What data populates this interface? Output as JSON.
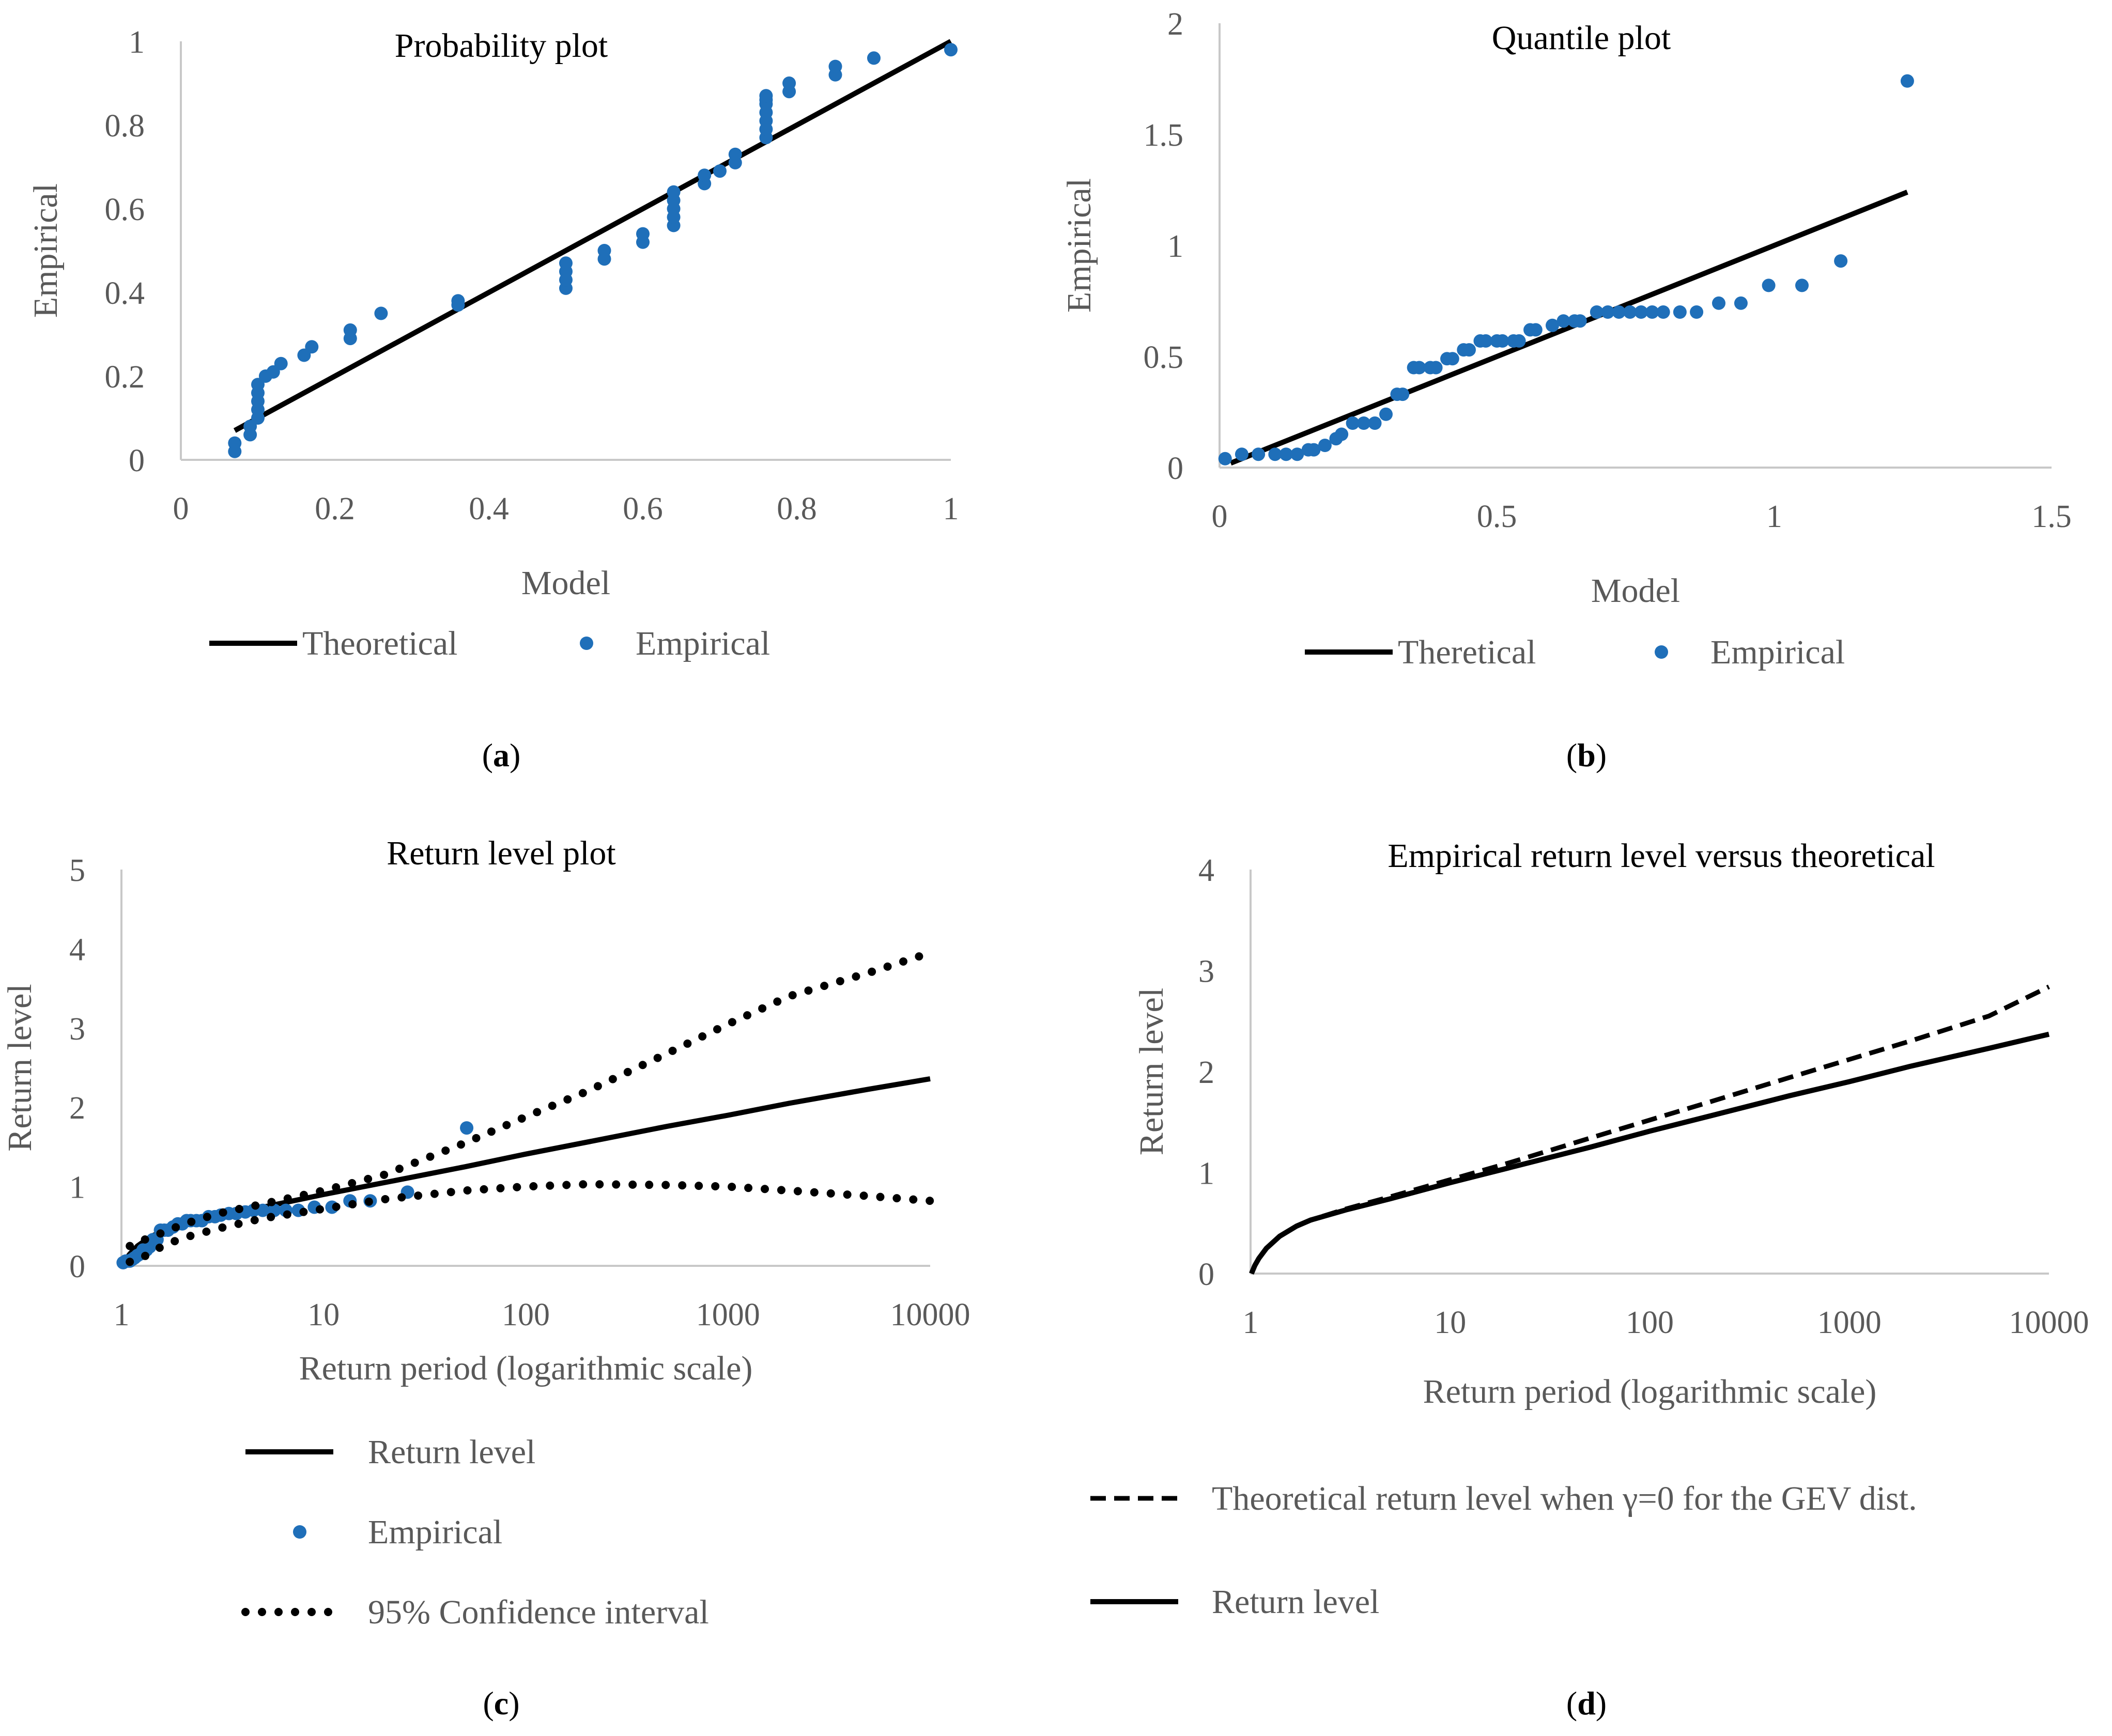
{
  "colors": {
    "empirical": "#1f6fb9",
    "line": "#000000",
    "axis": "#c8c8c8",
    "tick_text": "#595959"
  },
  "chart_data": [
    {
      "id": "a",
      "type": "scatter",
      "title": "Probability plot",
      "xlabel": "Model",
      "ylabel": "Empirical",
      "xlim": [
        0,
        1
      ],
      "ylim": [
        0,
        1
      ],
      "xticks": [
        0,
        0.2,
        0.4,
        0.6,
        0.8,
        1
      ],
      "xtick_labels": [
        "0",
        "0.2",
        "0.4",
        "0.6",
        "0.8",
        "1"
      ],
      "yticks": [
        0,
        0.2,
        0.4,
        0.6,
        0.8,
        1
      ],
      "ytick_labels": [
        "0",
        "0.2",
        "0.4",
        "0.6",
        "0.8",
        "1"
      ],
      "caption_letter": "a",
      "series": [
        {
          "name": "Theoretical",
          "kind": "line",
          "style": "solid",
          "x": [
            0.07,
            1.0
          ],
          "y": [
            0.07,
            1.0
          ]
        },
        {
          "name": "Empirical",
          "kind": "points",
          "x": [
            0.07,
            0.07,
            0.09,
            0.09,
            0.1,
            0.1,
            0.1,
            0.1,
            0.1,
            0.11,
            0.12,
            0.13,
            0.16,
            0.17,
            0.22,
            0.22,
            0.26,
            0.36,
            0.36,
            0.5,
            0.5,
            0.5,
            0.5,
            0.55,
            0.55,
            0.6,
            0.6,
            0.64,
            0.64,
            0.64,
            0.64,
            0.64,
            0.68,
            0.68,
            0.7,
            0.72,
            0.72,
            0.76,
            0.76,
            0.76,
            0.76,
            0.76,
            0.76,
            0.76,
            0.79,
            0.79,
            0.85,
            0.85,
            0.9,
            1.0
          ],
          "y": [
            0.02,
            0.04,
            0.06,
            0.08,
            0.1,
            0.12,
            0.14,
            0.16,
            0.18,
            0.2,
            0.21,
            0.23,
            0.25,
            0.27,
            0.29,
            0.31,
            0.35,
            0.37,
            0.38,
            0.41,
            0.43,
            0.45,
            0.47,
            0.48,
            0.5,
            0.52,
            0.54,
            0.56,
            0.58,
            0.6,
            0.62,
            0.64,
            0.66,
            0.68,
            0.69,
            0.71,
            0.73,
            0.77,
            0.79,
            0.81,
            0.83,
            0.85,
            0.86,
            0.87,
            0.88,
            0.9,
            0.92,
            0.94,
            0.96,
            0.98
          ]
        }
      ],
      "legend": [
        "Theoretical",
        "Empirical"
      ]
    },
    {
      "id": "b",
      "type": "scatter",
      "title": "Quantile plot",
      "xlabel": "Model",
      "ylabel": "Empirical",
      "xlim": [
        0,
        1.5
      ],
      "ylim": [
        0,
        2
      ],
      "xticks": [
        0,
        0.5,
        1,
        1.5
      ],
      "xtick_labels": [
        "0",
        "0.5",
        "1",
        "1.5"
      ],
      "yticks": [
        0,
        0.5,
        1,
        1.5,
        2
      ],
      "ytick_labels": [
        "0",
        "0.5",
        "1",
        "1.5",
        "2"
      ],
      "caption_letter": "b",
      "series": [
        {
          "name": "Theretical",
          "kind": "line",
          "style": "solid",
          "x": [
            0.02,
            1.24
          ],
          "y": [
            0.02,
            1.24
          ]
        },
        {
          "name": "Empirical",
          "kind": "points",
          "x": [
            0.01,
            0.04,
            0.07,
            0.1,
            0.12,
            0.14,
            0.16,
            0.17,
            0.19,
            0.21,
            0.22,
            0.24,
            0.26,
            0.28,
            0.3,
            0.32,
            0.33,
            0.35,
            0.36,
            0.38,
            0.39,
            0.41,
            0.42,
            0.44,
            0.45,
            0.47,
            0.48,
            0.5,
            0.51,
            0.53,
            0.54,
            0.56,
            0.57,
            0.6,
            0.62,
            0.64,
            0.65,
            0.68,
            0.7,
            0.72,
            0.74,
            0.76,
            0.78,
            0.8,
            0.83,
            0.86,
            0.9,
            0.94,
            0.99,
            1.05,
            1.12,
            1.24
          ],
          "y": [
            0.04,
            0.06,
            0.06,
            0.06,
            0.06,
            0.06,
            0.08,
            0.08,
            0.1,
            0.13,
            0.15,
            0.2,
            0.2,
            0.2,
            0.24,
            0.33,
            0.33,
            0.45,
            0.45,
            0.45,
            0.45,
            0.49,
            0.49,
            0.53,
            0.53,
            0.57,
            0.57,
            0.57,
            0.57,
            0.57,
            0.57,
            0.62,
            0.62,
            0.64,
            0.66,
            0.66,
            0.66,
            0.7,
            0.7,
            0.7,
            0.7,
            0.7,
            0.7,
            0.7,
            0.7,
            0.7,
            0.74,
            0.74,
            0.82,
            0.82,
            0.93,
            1.74
          ]
        }
      ],
      "legend": [
        "Theretical",
        "Empirical"
      ]
    },
    {
      "id": "c",
      "type": "line",
      "title": "Return level plot",
      "xlabel": "Return period (logarithmic scale)",
      "ylabel": "Return level",
      "xscale": "log",
      "xlim": [
        1,
        10000
      ],
      "ylim": [
        0,
        5
      ],
      "xticks": [
        1,
        10,
        100,
        1000,
        10000
      ],
      "xtick_labels": [
        "1",
        "10",
        "100",
        "1000",
        "10000"
      ],
      "yticks": [
        0,
        1,
        2,
        3,
        4,
        5
      ],
      "ytick_labels": [
        "0",
        "1",
        "2",
        "3",
        "4",
        "5"
      ],
      "caption_letter": "c",
      "series": [
        {
          "name": "Return level",
          "kind": "line",
          "style": "solid",
          "x": [
            1.01,
            1.05,
            1.1,
            1.2,
            1.4,
            1.7,
            2,
            3,
            5,
            10,
            20,
            50,
            100,
            200,
            500,
            1000,
            2000,
            5000,
            10000
          ],
          "y": [
            0.0,
            0.08,
            0.15,
            0.25,
            0.37,
            0.47,
            0.53,
            0.63,
            0.74,
            0.9,
            1.05,
            1.25,
            1.41,
            1.56,
            1.76,
            1.9,
            2.05,
            2.23,
            2.36
          ]
        },
        {
          "name": "Empirical",
          "kind": "points",
          "x": [
            1.02,
            1.05,
            1.08,
            1.1,
            1.13,
            1.16,
            1.2,
            1.24,
            1.28,
            1.33,
            1.38,
            1.43,
            1.5,
            1.56,
            1.63,
            1.7,
            1.8,
            1.9,
            2.0,
            2.1,
            2.2,
            2.35,
            2.5,
            2.7,
            2.9,
            3.1,
            3.4,
            3.7,
            4.1,
            4.5,
            5.0,
            5.7,
            6.5,
            7.5,
            9,
            11,
            13.5,
            17,
            26,
            51
          ],
          "y": [
            0.04,
            0.06,
            0.06,
            0.06,
            0.08,
            0.1,
            0.13,
            0.15,
            0.2,
            0.2,
            0.24,
            0.33,
            0.33,
            0.45,
            0.45,
            0.45,
            0.49,
            0.53,
            0.53,
            0.57,
            0.57,
            0.57,
            0.57,
            0.62,
            0.62,
            0.64,
            0.66,
            0.66,
            0.68,
            0.7,
            0.7,
            0.7,
            0.7,
            0.7,
            0.74,
            0.74,
            0.82,
            0.82,
            0.93,
            1.74
          ]
        },
        {
          "name": "95% Confidence interval",
          "kind": "line",
          "style": "dotted",
          "x": [
            1.1,
            1.3,
            1.6,
            2,
            3,
            5,
            10,
            20,
            50,
            100,
            200,
            500,
            1000,
            2000,
            5000,
            10000
          ],
          "y": [
            0.25,
            0.33,
            0.42,
            0.52,
            0.66,
            0.78,
            0.95,
            1.15,
            1.55,
            1.88,
            2.2,
            2.68,
            3.05,
            3.4,
            3.7,
            3.95
          ]
        },
        {
          "name": "95% Confidence interval (lower)",
          "kind": "line",
          "style": "dotted",
          "x": [
            1.1,
            1.3,
            1.6,
            2,
            3,
            5,
            10,
            20,
            50,
            100,
            200,
            500,
            1000,
            2000,
            5000,
            10000
          ],
          "y": [
            0.05,
            0.12,
            0.25,
            0.35,
            0.47,
            0.6,
            0.72,
            0.84,
            0.95,
            1.0,
            1.03,
            1.02,
            1.0,
            0.95,
            0.88,
            0.82
          ]
        }
      ],
      "legend": [
        "Return level",
        "Empirical",
        "95% Confidence interval"
      ]
    },
    {
      "id": "d",
      "type": "line",
      "title": "Empirical return level versus theoretical",
      "xlabel": "Return period (logarithmic scale)",
      "ylabel": "Return level",
      "xscale": "log",
      "xlim": [
        1,
        10000
      ],
      "ylim": [
        0,
        4
      ],
      "xticks": [
        1,
        10,
        100,
        1000,
        10000
      ],
      "xtick_labels": [
        "1",
        "10",
        "100",
        "1000",
        "10000"
      ],
      "yticks": [
        0,
        1,
        2,
        3,
        4
      ],
      "ytick_labels": [
        "0",
        "1",
        "2",
        "3",
        "4"
      ],
      "caption_letter": "d",
      "series": [
        {
          "name": "Theoretical return level when γ=0 for the GEV dist.",
          "kind": "line",
          "style": "dashed",
          "x": [
            1.01,
            1.05,
            1.1,
            1.2,
            1.4,
            1.7,
            2,
            3,
            5,
            10,
            20,
            50,
            100,
            200,
            500,
            1000,
            2000,
            5000,
            10000
          ],
          "y": [
            0.0,
            0.08,
            0.15,
            0.25,
            0.37,
            0.47,
            0.53,
            0.64,
            0.76,
            0.93,
            1.1,
            1.34,
            1.52,
            1.7,
            1.94,
            2.12,
            2.3,
            2.55,
            2.84
          ]
        },
        {
          "name": "Return level",
          "kind": "line",
          "style": "solid",
          "x": [
            1.01,
            1.05,
            1.1,
            1.2,
            1.4,
            1.7,
            2,
            3,
            5,
            10,
            20,
            50,
            100,
            200,
            500,
            1000,
            2000,
            5000,
            10000
          ],
          "y": [
            0.0,
            0.08,
            0.15,
            0.25,
            0.37,
            0.47,
            0.53,
            0.63,
            0.74,
            0.9,
            1.05,
            1.25,
            1.41,
            1.56,
            1.76,
            1.9,
            2.05,
            2.23,
            2.37
          ]
        }
      ],
      "legend": [
        "Theoretical return level when γ=0 for the GEV dist.",
        "Return level"
      ]
    }
  ]
}
